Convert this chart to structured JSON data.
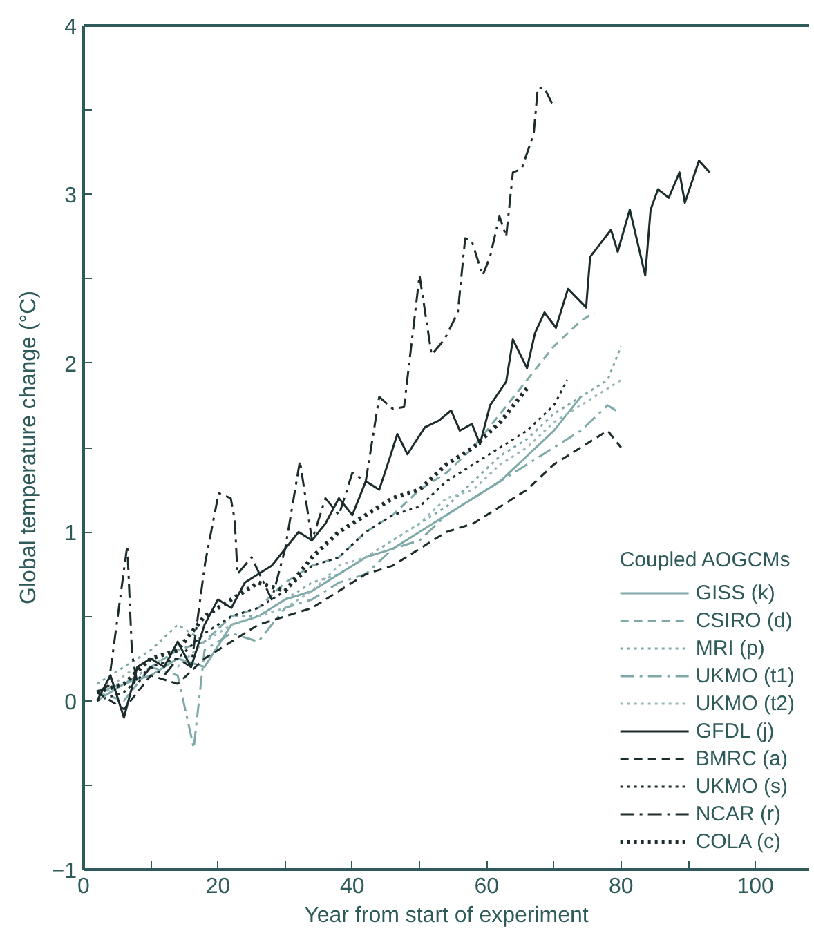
{
  "chart_data": {
    "type": "line",
    "xlabel": "Year from start of experiment",
    "ylabel": "Global temperature change (°C)",
    "legend_title": "Coupled AOGCMs",
    "legend": "bottom right",
    "grid": false,
    "xlim": [
      0,
      108
    ],
    "ylim": [
      -1,
      4
    ],
    "xticks": [
      0,
      {
        "value": 10,
        "label": null
      },
      20,
      {
        "value": 30,
        "label": null
      },
      40,
      {
        "value": 50,
        "label": null
      },
      60,
      {
        "value": 70,
        "label": null
      },
      80,
      {
        "value": 90,
        "label": null
      },
      100
    ],
    "yticks": [
      -1,
      {
        "value": -0.5,
        "label": null
      },
      0,
      {
        "value": 0.5,
        "label": null
      },
      1,
      {
        "value": 1.5,
        "label": null
      },
      2,
      {
        "value": 2.5,
        "label": null
      },
      3,
      {
        "value": 3.5,
        "label": null
      },
      4
    ],
    "series": [
      {
        "name": "GISS (k)",
        "color": "#7fa9a9",
        "line_style": "solid",
        "x": [
          2,
          6,
          10,
          14,
          18,
          22,
          26,
          30,
          34,
          38,
          42,
          46,
          50,
          54,
          58,
          62,
          66,
          70,
          74
        ],
        "values": [
          0.0,
          0.1,
          0.15,
          0.25,
          0.2,
          0.45,
          0.5,
          0.6,
          0.65,
          0.75,
          0.85,
          0.9,
          1.0,
          1.1,
          1.2,
          1.3,
          1.45,
          1.6,
          1.8
        ]
      },
      {
        "name": "CSIRO (d)",
        "color": "#7fa9a9",
        "line_style": "dashed",
        "x": [
          2,
          6,
          10,
          14,
          18,
          22,
          26,
          30,
          34,
          38,
          42,
          46,
          50,
          54,
          58,
          62,
          66,
          70,
          74,
          76
        ],
        "values": [
          0.05,
          0.0,
          0.2,
          0.3,
          0.35,
          0.5,
          0.55,
          0.7,
          0.8,
          0.85,
          1.0,
          1.1,
          1.25,
          1.35,
          1.5,
          1.7,
          1.9,
          2.1,
          2.25,
          2.3
        ]
      },
      {
        "name": "MRI (p)",
        "color": "#7fa9a9",
        "line_style": "dotted",
        "x": [
          2,
          6,
          10,
          14,
          18,
          22,
          26,
          30,
          34,
          38,
          42,
          46,
          50,
          54,
          58,
          62,
          66,
          70,
          74,
          78,
          80
        ],
        "values": [
          0.1,
          0.2,
          0.3,
          0.45,
          0.35,
          0.5,
          0.5,
          0.6,
          0.7,
          0.75,
          0.85,
          0.95,
          1.05,
          1.15,
          1.3,
          1.45,
          1.55,
          1.7,
          1.8,
          1.9,
          2.1
        ]
      },
      {
        "name": "UKMO (t1)",
        "color": "#7fa9a9",
        "line_style": "dashdot",
        "x": [
          2,
          6,
          10,
          14,
          16.4,
          18,
          22,
          26,
          30,
          34,
          38,
          42,
          46,
          50,
          54,
          58,
          62,
          66,
          70,
          74,
          78,
          80
        ],
        "values": [
          0.05,
          0.1,
          0.2,
          0.15,
          -0.28,
          0.3,
          0.4,
          0.35,
          0.55,
          0.6,
          0.7,
          0.75,
          0.9,
          0.95,
          1.1,
          1.2,
          1.3,
          1.4,
          1.5,
          1.6,
          1.75,
          1.7
        ]
      },
      {
        "name": "UKMO (t2)",
        "color": "#9ab8b8",
        "line_style": "dotted",
        "x": [
          2,
          6,
          10,
          14,
          18,
          22,
          26,
          30,
          34,
          38,
          42,
          46,
          50,
          54,
          58,
          62,
          66,
          70,
          74,
          78,
          80
        ],
        "values": [
          0.0,
          0.15,
          0.25,
          0.2,
          0.35,
          0.45,
          0.5,
          0.55,
          0.65,
          0.8,
          0.85,
          0.95,
          1.05,
          1.2,
          1.25,
          1.4,
          1.5,
          1.65,
          1.75,
          1.85,
          1.9
        ]
      },
      {
        "name": "GFDL (j)",
        "color": "#1c2b2b",
        "line_style": "solid",
        "x": [
          2,
          4,
          6,
          8,
          10,
          12,
          14,
          16,
          18,
          20,
          22,
          24,
          26,
          28,
          30,
          32,
          34,
          36,
          38,
          40,
          42,
          44,
          45.5,
          46.7,
          48.2,
          50.8,
          52.9,
          54.7,
          56,
          57.8,
          59,
          60.5,
          62.9,
          63.9,
          66,
          67.2,
          68.6,
          70.3,
          72.1,
          74.8,
          75.4,
          78.5,
          79.5,
          81.3,
          83.6,
          84.4,
          85.5,
          87.1,
          88.7,
          89.5,
          91.6,
          93.2
        ],
        "values": [
          0.0,
          0.15,
          -0.1,
          0.2,
          0.25,
          0.2,
          0.35,
          0.2,
          0.45,
          0.6,
          0.55,
          0.7,
          0.75,
          0.8,
          0.9,
          1.0,
          0.95,
          1.05,
          1.2,
          1.1,
          1.3,
          1.25,
          1.43,
          1.58,
          1.46,
          1.62,
          1.66,
          1.72,
          1.6,
          1.64,
          1.52,
          1.75,
          1.89,
          2.14,
          1.97,
          2.18,
          2.3,
          2.21,
          2.44,
          2.33,
          2.63,
          2.79,
          2.66,
          2.91,
          2.52,
          2.91,
          3.03,
          2.98,
          3.13,
          2.95,
          3.2,
          3.13
        ]
      },
      {
        "name": "BMRC (a)",
        "color": "#1c2b2b",
        "line_style": "dashed",
        "x": [
          2,
          6,
          10,
          14,
          18,
          22,
          26,
          30,
          34,
          38,
          42,
          46,
          50,
          54,
          58,
          62,
          66,
          70,
          74,
          78,
          80
        ],
        "values": [
          0.05,
          -0.05,
          0.15,
          0.1,
          0.25,
          0.35,
          0.45,
          0.5,
          0.55,
          0.65,
          0.75,
          0.8,
          0.9,
          1.0,
          1.05,
          1.15,
          1.25,
          1.4,
          1.5,
          1.6,
          1.5
        ]
      },
      {
        "name": "UKMO (s)",
        "color": "#1c2b2b",
        "line_style": "dotted",
        "x": [
          2,
          6,
          10,
          14,
          18,
          22,
          26,
          30,
          34,
          38,
          42,
          46,
          50,
          54,
          58,
          62,
          66,
          70,
          72
        ],
        "values": [
          0.0,
          0.05,
          0.2,
          0.25,
          0.4,
          0.5,
          0.55,
          0.65,
          0.8,
          0.85,
          1.0,
          1.1,
          1.15,
          1.3,
          1.4,
          1.5,
          1.6,
          1.75,
          1.9
        ]
      },
      {
        "name": "NCAR (r)",
        "color": "#1c2b2b",
        "line_style": "dashdot",
        "x": [
          2,
          3.7,
          6.5,
          7.2,
          8,
          10,
          12,
          14,
          16,
          18.1,
          20.1,
          21.9,
          22.5,
          22.9,
          25,
          28,
          30,
          32.2,
          34,
          36,
          38,
          40,
          42,
          44,
          46,
          47.7,
          50,
          51.8,
          53.7,
          55.7,
          56.8,
          57.8,
          59.4,
          60.5,
          61.9,
          62.9,
          63.9,
          65.2,
          67,
          67.6,
          68.6,
          69.7,
          70.3
        ],
        "values": [
          0.05,
          0.09,
          0.92,
          0.28,
          0.1,
          0.2,
          0.15,
          0.25,
          0.2,
          0.82,
          1.23,
          1.2,
          1.07,
          0.75,
          0.85,
          0.6,
          0.9,
          1.42,
          0.95,
          1.2,
          1.1,
          1.35,
          1.3,
          1.8,
          1.73,
          1.74,
          2.52,
          2.05,
          2.14,
          2.3,
          2.74,
          2.72,
          2.52,
          2.63,
          2.87,
          2.75,
          3.13,
          3.15,
          3.36,
          3.63,
          3.63,
          3.54,
          3.54
        ]
      },
      {
        "name": "COLA (c)",
        "color": "#1c2b2b",
        "line_style": "heavy_dotted",
        "x": [
          2,
          6,
          10,
          14,
          18,
          22,
          26,
          30,
          34,
          38,
          42,
          46,
          50,
          54,
          58,
          62,
          66
        ],
        "values": [
          0.05,
          0.1,
          0.25,
          0.3,
          0.5,
          0.6,
          0.7,
          0.65,
          0.85,
          1.0,
          1.1,
          1.2,
          1.25,
          1.4,
          1.5,
          1.65,
          1.85
        ]
      }
    ]
  }
}
